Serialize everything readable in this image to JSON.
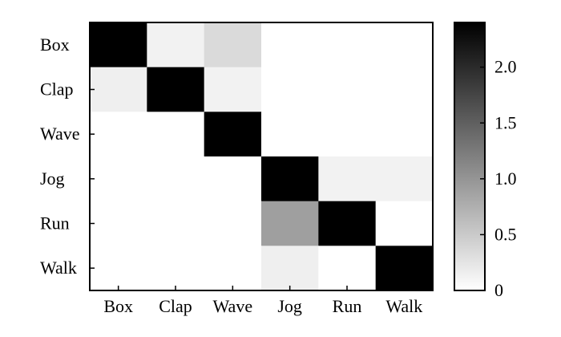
{
  "chart_data": {
    "type": "heatmap",
    "rows": [
      "Box",
      "Clap",
      "Wave",
      "Jog",
      "Run",
      "Walk"
    ],
    "columns": [
      "Box",
      "Clap",
      "Wave",
      "Jog",
      "Run",
      "Walk"
    ],
    "values": [
      [
        2.4,
        0.12,
        0.35,
        0,
        0,
        0
      ],
      [
        0.15,
        2.4,
        0.12,
        0,
        0,
        0
      ],
      [
        0,
        0,
        2.4,
        0,
        0,
        0
      ],
      [
        0,
        0,
        0,
        2.4,
        0.12,
        0.12
      ],
      [
        0,
        0,
        0,
        0.9,
        2.4,
        0
      ],
      [
        0,
        0,
        0,
        0.15,
        0,
        2.4
      ]
    ],
    "colorbar": {
      "min": 0,
      "max": 2.4,
      "ticks": [
        0,
        0.5,
        1.0,
        1.5,
        2.0
      ],
      "tick_labels": [
        "0",
        "0.5",
        "1.0",
        "1.5",
        "2.0"
      ],
      "scale": "gray"
    },
    "title": "",
    "xlabel": "",
    "ylabel": ""
  }
}
